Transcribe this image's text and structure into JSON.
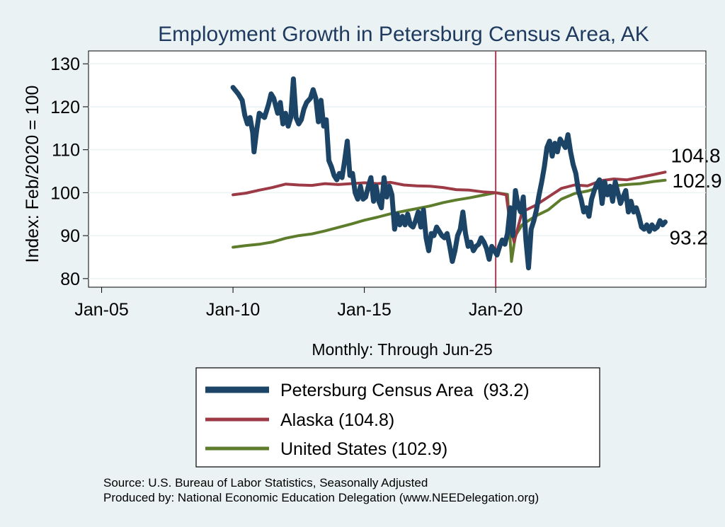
{
  "chart_data": {
    "type": "line",
    "title": "Employment Growth in Petersburg Census Area, AK",
    "ylabel": "Index: Feb/2020 = 100",
    "xlabel": "Monthly: Through Jun-25",
    "ylim": [
      78,
      133
    ],
    "xlim": [
      2004.5,
      2028.0
    ],
    "yticks": [
      80,
      90,
      100,
      110,
      120,
      130
    ],
    "xticks": [
      {
        "value": 2005.0,
        "label": "Jan-05"
      },
      {
        "value": 2010.0,
        "label": "Jan-10"
      },
      {
        "value": 2015.0,
        "label": "Jan-15"
      },
      {
        "value": 2020.0,
        "label": "Jan-20"
      }
    ],
    "reference_line": {
      "x": 2020.0,
      "color": "#c0243c"
    },
    "series": [
      {
        "name": "Petersburg Census Area",
        "legend": "Petersburg Census Area  (93.2)",
        "color": "#1b4466",
        "end_label": "93.2",
        "points": [
          [
            2010.0,
            124.5
          ],
          [
            2010.2,
            123.0
          ],
          [
            2010.35,
            121.5
          ],
          [
            2010.45,
            118.0
          ],
          [
            2010.55,
            116.0
          ],
          [
            2010.65,
            117.5
          ],
          [
            2010.75,
            114.0
          ],
          [
            2010.8,
            109.5
          ],
          [
            2010.9,
            114.5
          ],
          [
            2011.0,
            118.5
          ],
          [
            2011.2,
            117.5
          ],
          [
            2011.35,
            120.5
          ],
          [
            2011.45,
            123.0
          ],
          [
            2011.55,
            122.0
          ],
          [
            2011.7,
            118.5
          ],
          [
            2011.8,
            121.0
          ],
          [
            2011.9,
            116.0
          ],
          [
            2012.0,
            118.5
          ],
          [
            2012.1,
            115.5
          ],
          [
            2012.2,
            117.5
          ],
          [
            2012.3,
            126.5
          ],
          [
            2012.4,
            117.5
          ],
          [
            2012.5,
            116.0
          ],
          [
            2012.6,
            117.0
          ],
          [
            2012.7,
            119.5
          ],
          [
            2012.8,
            121.0
          ],
          [
            2012.95,
            122.0
          ],
          [
            2013.05,
            124.0
          ],
          [
            2013.15,
            122.0
          ],
          [
            2013.25,
            116.5
          ],
          [
            2013.35,
            121.5
          ],
          [
            2013.45,
            115.5
          ],
          [
            2013.55,
            117.0
          ],
          [
            2013.65,
            107.5
          ],
          [
            2013.75,
            106.0
          ],
          [
            2013.85,
            104.0
          ],
          [
            2013.95,
            103.0
          ],
          [
            2014.05,
            104.5
          ],
          [
            2014.15,
            103.5
          ],
          [
            2014.25,
            107.5
          ],
          [
            2014.35,
            112.0
          ],
          [
            2014.45,
            104.0
          ],
          [
            2014.55,
            104.5
          ],
          [
            2014.65,
            100.0
          ],
          [
            2014.75,
            98.5
          ],
          [
            2014.85,
            101.5
          ],
          [
            2014.95,
            98.5
          ],
          [
            2015.05,
            99.0
          ],
          [
            2015.15,
            101.5
          ],
          [
            2015.25,
            103.5
          ],
          [
            2015.35,
            98.0
          ],
          [
            2015.45,
            101.5
          ],
          [
            2015.55,
            98.0
          ],
          [
            2015.65,
            96.5
          ],
          [
            2015.75,
            103.5
          ],
          [
            2015.85,
            99.0
          ],
          [
            2015.95,
            101.5
          ],
          [
            2016.05,
            99.5
          ],
          [
            2016.15,
            91.5
          ],
          [
            2016.25,
            95.0
          ],
          [
            2016.35,
            92.5
          ],
          [
            2016.45,
            94.5
          ],
          [
            2016.55,
            92.5
          ],
          [
            2016.65,
            95.0
          ],
          [
            2016.75,
            92.5
          ],
          [
            2016.85,
            92.0
          ],
          [
            2016.95,
            93.5
          ],
          [
            2017.05,
            95.5
          ],
          [
            2017.15,
            92.0
          ],
          [
            2017.25,
            96.0
          ],
          [
            2017.35,
            89.5
          ],
          [
            2017.45,
            86.5
          ],
          [
            2017.55,
            90.5
          ],
          [
            2017.65,
            90.0
          ],
          [
            2017.75,
            92.0
          ],
          [
            2017.85,
            91.0
          ],
          [
            2017.95,
            90.0
          ],
          [
            2018.05,
            89.5
          ],
          [
            2018.15,
            90.5
          ],
          [
            2018.25,
            87.5
          ],
          [
            2018.35,
            84.0
          ],
          [
            2018.45,
            86.5
          ],
          [
            2018.55,
            90.0
          ],
          [
            2018.65,
            91.5
          ],
          [
            2018.75,
            95.5
          ],
          [
            2018.85,
            90.5
          ],
          [
            2018.95,
            87.5
          ],
          [
            2019.05,
            88.5
          ],
          [
            2019.15,
            86.5
          ],
          [
            2019.25,
            87.5
          ],
          [
            2019.35,
            88.0
          ],
          [
            2019.45,
            89.5
          ],
          [
            2019.55,
            88.5
          ],
          [
            2019.65,
            87.0
          ],
          [
            2019.75,
            84.5
          ],
          [
            2019.85,
            87.5
          ],
          [
            2019.95,
            86.5
          ],
          [
            2020.05,
            85.5
          ],
          [
            2020.15,
            87.5
          ],
          [
            2020.25,
            89.0
          ],
          [
            2020.35,
            88.0
          ],
          [
            2020.45,
            90.5
          ],
          [
            2020.55,
            96.5
          ],
          [
            2020.65,
            90.0
          ],
          [
            2020.75,
            100.5
          ],
          [
            2020.85,
            97.0
          ],
          [
            2020.95,
            95.5
          ],
          [
            2021.05,
            99.0
          ],
          [
            2021.15,
            89.0
          ],
          [
            2021.25,
            82.5
          ],
          [
            2021.35,
            91.5
          ],
          [
            2021.45,
            93.5
          ],
          [
            2021.55,
            96.0
          ],
          [
            2021.65,
            99.5
          ],
          [
            2021.75,
            102.5
          ],
          [
            2021.85,
            106.0
          ],
          [
            2021.95,
            110.5
          ],
          [
            2022.05,
            112.0
          ],
          [
            2022.15,
            108.5
          ],
          [
            2022.25,
            111.5
          ],
          [
            2022.35,
            109.5
          ],
          [
            2022.45,
            112.5
          ],
          [
            2022.55,
            111.5
          ],
          [
            2022.65,
            110.5
          ],
          [
            2022.75,
            113.5
          ],
          [
            2022.85,
            109.5
          ],
          [
            2022.95,
            106.5
          ],
          [
            2023.05,
            104.5
          ],
          [
            2023.15,
            100.5
          ],
          [
            2023.25,
            98.5
          ],
          [
            2023.35,
            95.5
          ],
          [
            2023.45,
            96.5
          ],
          [
            2023.55,
            94.5
          ],
          [
            2023.65,
            98.5
          ],
          [
            2023.75,
            100.5
          ],
          [
            2023.85,
            102.0
          ],
          [
            2023.95,
            103.0
          ],
          [
            2024.05,
            97.5
          ],
          [
            2024.15,
            102.5
          ],
          [
            2024.25,
            99.5
          ],
          [
            2024.35,
            101.5
          ],
          [
            2024.45,
            98.0
          ],
          [
            2024.55,
            102.5
          ],
          [
            2024.65,
            100.0
          ],
          [
            2024.75,
            97.5
          ],
          [
            2024.85,
            99.0
          ],
          [
            2024.95,
            100.5
          ],
          [
            2025.05,
            95.5
          ],
          [
            2025.15,
            98.0
          ],
          [
            2025.25,
            95.5
          ],
          [
            2025.35,
            96.5
          ],
          [
            2025.45,
            94.5
          ],
          [
            2025.55,
            92.0
          ],
          [
            2025.65,
            91.5
          ],
          [
            2025.75,
            92.5
          ],
          [
            2025.85,
            91.0
          ],
          [
            2025.95,
            92.5
          ],
          [
            2026.05,
            91.5
          ],
          [
            2026.15,
            92.0
          ],
          [
            2026.25,
            93.5
          ],
          [
            2026.35,
            92.5
          ],
          [
            2026.45,
            93.2
          ]
        ]
      },
      {
        "name": "Alaska",
        "legend": "Alaska (104.8)",
        "color": "#9c3a46",
        "end_label": "104.8",
        "points": [
          [
            2010.0,
            99.5
          ],
          [
            2010.5,
            99.9
          ],
          [
            2011.0,
            100.6
          ],
          [
            2011.5,
            101.2
          ],
          [
            2012.0,
            102.0
          ],
          [
            2012.5,
            101.8
          ],
          [
            2013.0,
            101.7
          ],
          [
            2013.5,
            102.1
          ],
          [
            2014.0,
            101.9
          ],
          [
            2014.5,
            102.1
          ],
          [
            2015.0,
            102.3
          ],
          [
            2015.5,
            102.1
          ],
          [
            2016.0,
            102.4
          ],
          [
            2016.5,
            101.8
          ],
          [
            2017.0,
            101.6
          ],
          [
            2017.5,
            101.5
          ],
          [
            2018.0,
            101.2
          ],
          [
            2018.5,
            100.7
          ],
          [
            2019.0,
            100.6
          ],
          [
            2019.5,
            100.2
          ],
          [
            2020.0,
            100.0
          ],
          [
            2020.4,
            99.5
          ],
          [
            2020.55,
            92.5
          ],
          [
            2020.7,
            88.5
          ],
          [
            2020.85,
            92.0
          ],
          [
            2021.0,
            95.5
          ],
          [
            2021.5,
            97.0
          ],
          [
            2022.0,
            99.0
          ],
          [
            2022.5,
            101.0
          ],
          [
            2023.0,
            101.8
          ],
          [
            2023.5,
            101.6
          ],
          [
            2024.0,
            102.8
          ],
          [
            2024.5,
            103.2
          ],
          [
            2025.0,
            103.0
          ],
          [
            2025.5,
            103.6
          ],
          [
            2026.0,
            104.2
          ],
          [
            2026.45,
            104.8
          ]
        ]
      },
      {
        "name": "United States",
        "legend": "United States (102.9)",
        "color": "#5e7d2c",
        "end_label": "102.9",
        "points": [
          [
            2010.0,
            87.3
          ],
          [
            2010.5,
            87.7
          ],
          [
            2011.0,
            88.0
          ],
          [
            2011.5,
            88.5
          ],
          [
            2012.0,
            89.4
          ],
          [
            2012.5,
            90.0
          ],
          [
            2013.0,
            90.4
          ],
          [
            2013.5,
            91.1
          ],
          [
            2014.0,
            91.9
          ],
          [
            2014.5,
            92.7
          ],
          [
            2015.0,
            93.6
          ],
          [
            2015.5,
            94.3
          ],
          [
            2016.0,
            95.1
          ],
          [
            2016.5,
            95.7
          ],
          [
            2017.0,
            96.3
          ],
          [
            2017.5,
            96.9
          ],
          [
            2018.0,
            97.7
          ],
          [
            2018.5,
            98.3
          ],
          [
            2019.0,
            98.8
          ],
          [
            2019.5,
            99.4
          ],
          [
            2020.0,
            100.0
          ],
          [
            2020.45,
            99.6
          ],
          [
            2020.6,
            84.0
          ],
          [
            2020.75,
            90.0
          ],
          [
            2021.0,
            92.5
          ],
          [
            2021.5,
            94.5
          ],
          [
            2022.0,
            96.0
          ],
          [
            2022.5,
            98.5
          ],
          [
            2023.0,
            99.8
          ],
          [
            2023.5,
            100.4
          ],
          [
            2024.0,
            101.3
          ],
          [
            2024.5,
            101.6
          ],
          [
            2025.0,
            101.9
          ],
          [
            2025.5,
            102.1
          ],
          [
            2026.0,
            102.6
          ],
          [
            2026.45,
            102.9
          ]
        ]
      }
    ],
    "source": "Source: U.S. Bureau of Labor Statistics, Seasonally Adjusted",
    "producer": "Produced by: National Economic Education Delegation (www.NEEDelegation.org)"
  }
}
